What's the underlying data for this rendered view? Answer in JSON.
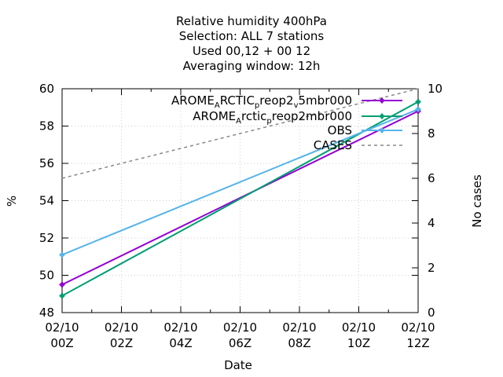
{
  "chart_data": {
    "type": "line",
    "title_lines": [
      "Relative humidity 400hPa",
      "Selection: ALL       7 stations",
      "Used  00,12  + 00 12",
      "Averaging window: 12h"
    ],
    "xlabel": "Date",
    "ylabel": "%",
    "y2label": "No cases",
    "x": [
      0,
      12
    ],
    "xlim": [
      0,
      12
    ],
    "ylim": [
      48,
      60
    ],
    "y2lim": [
      0,
      10
    ],
    "x_ticks": [
      {
        "v": 0,
        "l1": "02/10",
        "l2": "00Z"
      },
      {
        "v": 2,
        "l1": "02/10",
        "l2": "02Z"
      },
      {
        "v": 4,
        "l1": "02/10",
        "l2": "04Z"
      },
      {
        "v": 6,
        "l1": "02/10",
        "l2": "06Z"
      },
      {
        "v": 8,
        "l1": "02/10",
        "l2": "08Z"
      },
      {
        "v": 10,
        "l1": "02/10",
        "l2": "10Z"
      },
      {
        "v": 12,
        "l1": "02/10",
        "l2": "12Z"
      }
    ],
    "y_ticks": [
      48,
      50,
      52,
      54,
      56,
      58,
      60
    ],
    "y2_ticks": [
      0,
      2,
      4,
      6,
      8,
      10
    ],
    "grid": true,
    "legend_position": "top-right",
    "series": [
      {
        "name_parts": [
          [
            "AROME",
            ""
          ],
          [
            "A",
            "sub"
          ],
          [
            "RCTIC",
            ""
          ],
          [
            "p",
            "sub"
          ],
          [
            "reop2",
            ""
          ],
          [
            "v",
            "sub"
          ],
          [
            "5mbr000",
            ""
          ]
        ],
        "values": [
          49.5,
          58.8
        ],
        "axis": "y",
        "color": "#9400d3",
        "style": "line-points"
      },
      {
        "name_parts": [
          [
            "AROME",
            ""
          ],
          [
            "A",
            "sub"
          ],
          [
            "rctic",
            ""
          ],
          [
            "p",
            "sub"
          ],
          [
            "reop2mbr000",
            ""
          ]
        ],
        "values": [
          48.9,
          59.3
        ],
        "axis": "y",
        "color": "#009e73",
        "style": "line-points"
      },
      {
        "name_parts": [
          [
            "OBS",
            ""
          ]
        ],
        "values": [
          51.1,
          58.9
        ],
        "axis": "y",
        "color": "#56b4e9",
        "style": "line-points"
      },
      {
        "name_parts": [
          [
            "CASES",
            ""
          ]
        ],
        "values": [
          6,
          10
        ],
        "axis": "y2",
        "color": "#888888",
        "style": "dashed"
      }
    ]
  }
}
